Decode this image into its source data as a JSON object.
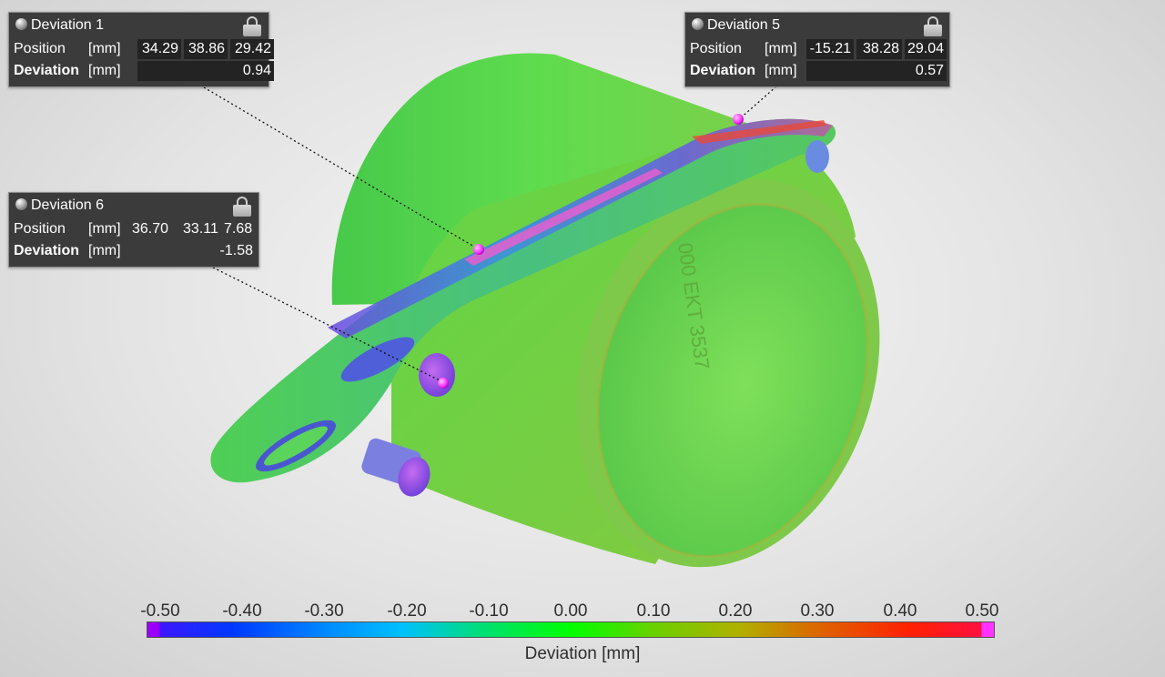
{
  "annotations": [
    {
      "title": "Deviation 1",
      "position_label": "Position",
      "position_unit": "[mm]",
      "position": [
        "34.29",
        "38.86",
        "29.42"
      ],
      "deviation_label": "Deviation",
      "deviation_unit": "[mm]",
      "deviation": "0.94"
    },
    {
      "title": "Deviation 5",
      "position_label": "Position",
      "position_unit": "[mm]",
      "position": [
        "-15.21",
        "38.28",
        "29.04"
      ],
      "deviation_label": "Deviation",
      "deviation_unit": "[mm]",
      "deviation": "0.57"
    },
    {
      "title": "Deviation 6",
      "position_label": "Position",
      "position_unit": "[mm]",
      "position": [
        "36.70",
        "33.11",
        "7.68"
      ],
      "deviation_label": "Deviation",
      "deviation_unit": "[mm]",
      "deviation": "-1.58"
    }
  ],
  "legend": {
    "title": "Deviation [mm]",
    "ticks": [
      "-0.50",
      "-0.40",
      "-0.30",
      "-0.20",
      "-0.10",
      "0.00",
      "0.10",
      "0.20",
      "0.30",
      "0.40",
      "0.50"
    ],
    "colors": {
      "min": "#9a00ff",
      "low": "#0038ff",
      "zero": "#00ff00",
      "high": "#ff2000",
      "max": "#ff33ff"
    }
  },
  "part_engraving": "000 EKT 3537",
  "icons": {
    "marker": "sphere-icon",
    "lock": "lock-icon"
  }
}
